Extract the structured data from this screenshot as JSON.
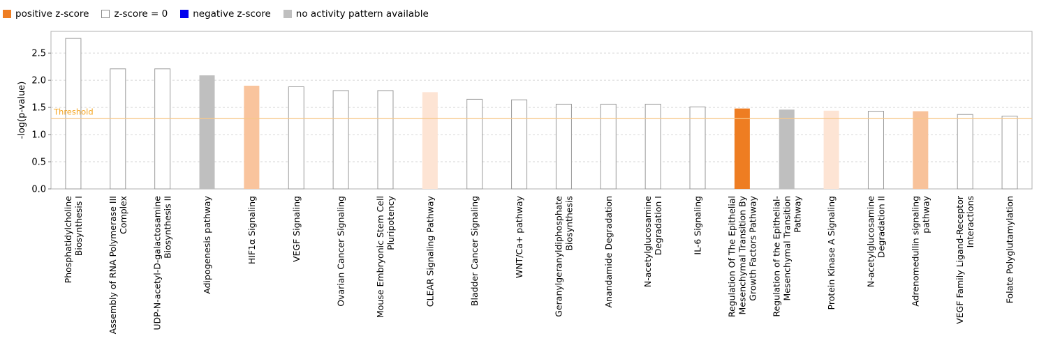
{
  "legend": {
    "items": [
      {
        "label": "positive z-score",
        "color": "#ee7d22",
        "outlined": false
      },
      {
        "label": "z-score = 0",
        "color": "#ffffff",
        "outlined": true
      },
      {
        "label": "negative z-score",
        "color": "#0000ee",
        "outlined": false
      },
      {
        "label": "no activity pattern available",
        "color": "#bfbfbf",
        "outlined": false
      }
    ]
  },
  "chart_data": {
    "type": "bar",
    "ylabel": "-log(p-value)",
    "ylim": [
      0,
      2.9
    ],
    "yticks": [
      "0.0",
      "0.5",
      "1.0",
      "1.5",
      "2.0",
      "2.5"
    ],
    "grid": true,
    "legend_placement": "top-left",
    "threshold": {
      "label": "Threshold",
      "value": 1.3,
      "color": "#f7c88a",
      "label_color": "#f5a623"
    },
    "categories": [
      [
        "Phosphatidylcholine",
        "Biosynthesis I"
      ],
      [
        "Assembly of RNA Polymerase III",
        "Complex"
      ],
      [
        "UDP-N-acetyl-D-galactosamine",
        "Biosynthesis II"
      ],
      [
        "Adipogenesis pathway"
      ],
      [
        "HIF1α Signaling"
      ],
      [
        "VEGF Signaling"
      ],
      [
        "Ovarian Cancer Signaling"
      ],
      [
        "Mouse Embryonic Stem Cell",
        "Pluripotency"
      ],
      [
        "CLEAR Signaling Pathway"
      ],
      [
        "Bladder Cancer Signaling"
      ],
      [
        "WNT/Ca+ pathway"
      ],
      [
        "Geranylgeranyldiphosphate",
        "Biosynthesis"
      ],
      [
        "Anandamide Degradation"
      ],
      [
        "N-acetylglucosamine",
        "Degradation I"
      ],
      [
        "IL-6 Signaling"
      ],
      [
        "Regulation Of The Epithelial",
        "Mesenchymal Transition By",
        "Growth Factors Pathway"
      ],
      [
        "Regulation of the Epithelial-",
        "Mesenchymal Transition",
        "Pathway"
      ],
      [
        "Protein Kinase A Signaling"
      ],
      [
        "N-acetylglucosamine",
        "Degradation II"
      ],
      [
        "Adrenomedullin signaling",
        "pathway"
      ],
      [
        "VEGF Family Ligand-Receptor",
        "Interactions"
      ],
      [
        "Folate Polyglutamylation"
      ]
    ],
    "values": [
      2.77,
      2.21,
      2.21,
      2.09,
      1.9,
      1.88,
      1.81,
      1.81,
      1.78,
      1.65,
      1.64,
      1.56,
      1.56,
      1.56,
      1.51,
      1.48,
      1.46,
      1.44,
      1.43,
      1.43,
      1.37,
      1.34
    ],
    "bar_colors": [
      "#ffffff",
      "#ffffff",
      "#ffffff",
      "#bfbfbf",
      "#f9c49d",
      "#ffffff",
      "#ffffff",
      "#ffffff",
      "#fde4d4",
      "#ffffff",
      "#ffffff",
      "#ffffff",
      "#ffffff",
      "#ffffff",
      "#ffffff",
      "#ee7d22",
      "#bfbfbf",
      "#fde4d4",
      "#ffffff",
      "#f8c29a",
      "#ffffff",
      "#ffffff"
    ]
  }
}
